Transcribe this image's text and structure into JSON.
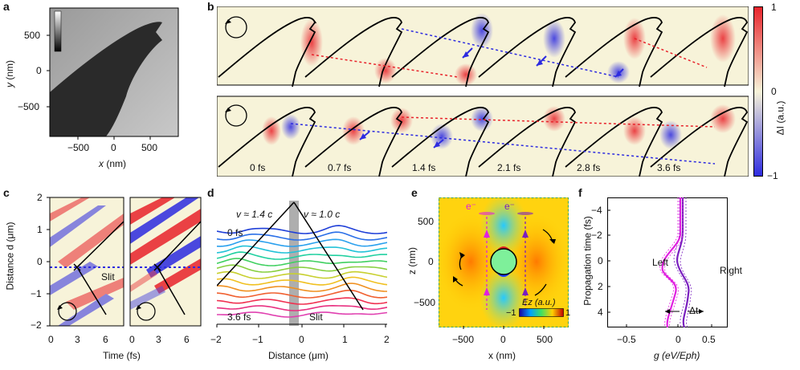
{
  "panel_labels": {
    "a": "a",
    "b": "b",
    "c": "c",
    "d": "d",
    "e": "e",
    "f": "f"
  },
  "panel_a": {
    "x_ticks": [
      "−500",
      "0",
      "500"
    ],
    "y_ticks": [
      "500",
      "0",
      "−500"
    ],
    "xlabel_var": "x",
    "xlabel_unit": " (nm)",
    "ylabel_var": "y",
    "ylabel_unit": " (nm)"
  },
  "panel_b": {
    "time_labels": [
      "0 fs",
      "0.7 fs",
      "1.4 fs",
      "2.1 fs",
      "2.8 fs",
      "3.6 fs"
    ],
    "colorbar_ticks": [
      "1",
      "0",
      "−1"
    ],
    "colorbar_label": "ΔI (a.u.)"
  },
  "panel_c": {
    "y_ticks": [
      "2",
      "1",
      "0",
      "−1",
      "−2"
    ],
    "x_ticks_left": [
      "0",
      "3",
      "6"
    ],
    "x_ticks_right": [
      "0",
      "3",
      "6"
    ],
    "ylabel": "Distance d (μm)",
    "xlabel": "Time (fs)",
    "annotation": "Slit"
  },
  "panel_d": {
    "x_ticks": [
      "−2",
      "−1",
      "0",
      "1",
      "2"
    ],
    "xlabel": "Distance (μm)",
    "speed_left": "v ≈ 1.4 c",
    "speed_right": "v ≈ 1.0 c",
    "time_top": "0 fs",
    "time_bottom": "3.6 fs",
    "annotation": "Slit"
  },
  "panel_e": {
    "x_ticks": [
      "−500",
      "0",
      "500"
    ],
    "y_ticks": [
      "500",
      "0",
      "−500"
    ],
    "xlabel": "x (nm)",
    "ylabel": "z (nm)",
    "electron_left": "e⁻",
    "electron_right": "e⁻",
    "colorbar_title": "Ez (a.u.)",
    "colorbar_min": "−1",
    "colorbar_max": "1"
  },
  "panel_f": {
    "y_ticks": [
      "−4",
      "−2",
      "0",
      "2",
      "4"
    ],
    "x_ticks": [
      "−0.5",
      "0",
      "0.5"
    ],
    "ylabel": "Propagation time (fs)",
    "xlabel": "g (eV/Eph)",
    "label_left": "Left",
    "label_right": "Right",
    "delta": "Δt"
  },
  "colors": {
    "red": "#e8232b",
    "blue": "#2d2be0",
    "magenta": "#e020e0",
    "purple": "#7a1fbf",
    "field_bg": "#f7f3d9"
  }
}
